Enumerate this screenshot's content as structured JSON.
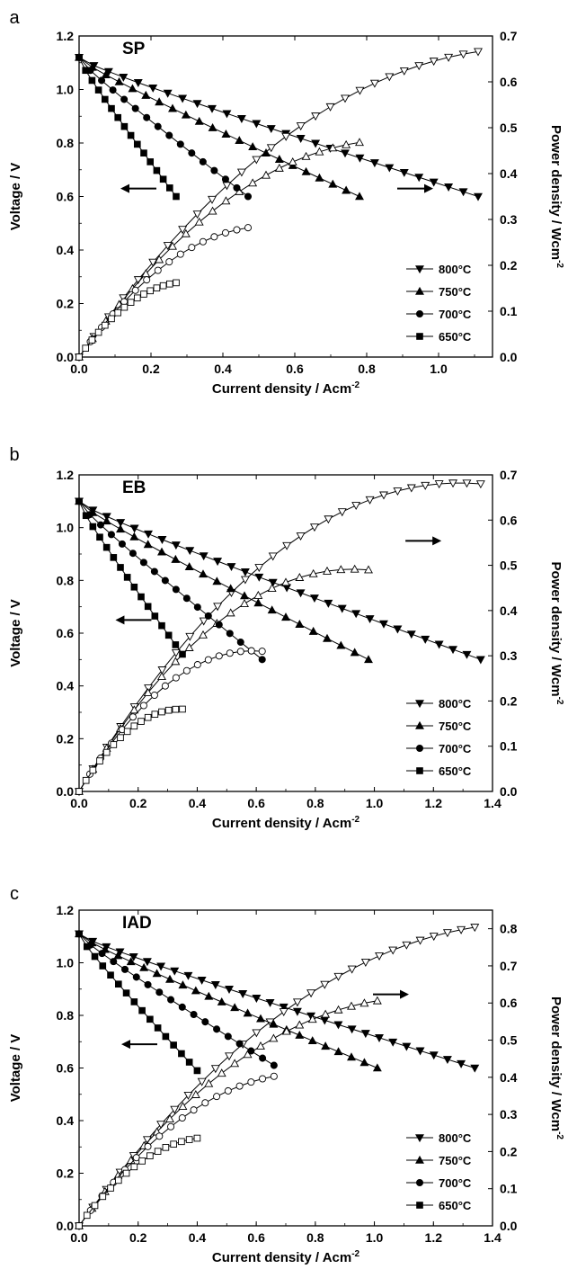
{
  "chart_data": [
    {
      "type": "line",
      "panel_letter": "a",
      "title": "SP",
      "xlabel": "Current density / Acm",
      "xlabel_sup": "-2",
      "ylabel": "Voltage / V",
      "y2label": "Power density / Wcm",
      "y2label_sup": "-2",
      "xlim": [
        0,
        1.15
      ],
      "xticks": [
        "0.0",
        "0.2",
        "0.4",
        "0.6",
        "0.8",
        "1.0"
      ],
      "xtick_values": [
        0,
        0.2,
        0.4,
        0.6,
        0.8,
        1.0
      ],
      "ylim": [
        0,
        1.2
      ],
      "yticks": [
        "0.0",
        "0.2",
        "0.4",
        "0.6",
        "0.8",
        "1.0",
        "1.2"
      ],
      "yticks_values": [
        0,
        0.2,
        0.4,
        0.6,
        0.8,
        1.0,
        1.2
      ],
      "y2lim": [
        0,
        0.7
      ],
      "y2ticks": [
        "0.0",
        "0.1",
        "0.2",
        "0.3",
        "0.4",
        "0.5",
        "0.6",
        "0.7"
      ],
      "y2ticks_values": [
        0,
        0.1,
        0.2,
        0.3,
        0.4,
        0.5,
        0.6,
        0.7
      ],
      "legend_position": "bottom-right",
      "left_arrow_at": [
        0.17,
        0.63
      ],
      "right_arrow_at": [
        0.93,
        0.63
      ],
      "series": [
        {
          "name": "800°C",
          "marker": "triangle-down",
          "ocv": 1.12,
          "imax": 1.11,
          "vmin": 0.6
        },
        {
          "name": "750°C",
          "marker": "triangle-up",
          "ocv": 1.12,
          "imax": 0.78,
          "vmin": 0.6
        },
        {
          "name": "700°C",
          "marker": "circle",
          "ocv": 1.12,
          "imax": 0.47,
          "vmin": 0.6
        },
        {
          "name": "650°C",
          "marker": "square",
          "ocv": 1.12,
          "imax": 0.27,
          "vmin": 0.6
        }
      ]
    },
    {
      "type": "line",
      "panel_letter": "b",
      "title": "EB",
      "xlabel": "Current density / Acm",
      "xlabel_sup": "-2",
      "ylabel": "Voltage / V",
      "y2label": "Power density / Wcm",
      "y2label_sup": "-2",
      "xlim": [
        0,
        1.4
      ],
      "xticks": [
        "0.0",
        "0.2",
        "0.4",
        "0.6",
        "0.8",
        "1.0",
        "1.2",
        "1.4"
      ],
      "xtick_values": [
        0,
        0.2,
        0.4,
        0.6,
        0.8,
        1.0,
        1.2,
        1.4
      ],
      "ylim": [
        0,
        1.2
      ],
      "yticks": [
        "0.0",
        "0.2",
        "0.4",
        "0.6",
        "0.8",
        "1.0",
        "1.2"
      ],
      "yticks_values": [
        0,
        0.2,
        0.4,
        0.6,
        0.8,
        1.0,
        1.2
      ],
      "y2lim": [
        0,
        0.7
      ],
      "y2ticks": [
        "0.0",
        "0.1",
        "0.2",
        "0.3",
        "0.4",
        "0.5",
        "0.6",
        "0.7"
      ],
      "y2ticks_values": [
        0,
        0.1,
        0.2,
        0.3,
        0.4,
        0.5,
        0.6,
        0.7
      ],
      "legend_position": "bottom-right",
      "left_arrow_at": [
        0.19,
        0.65
      ],
      "right_arrow_at": [
        1.16,
        0.95
      ],
      "series": [
        {
          "name": "800°C",
          "marker": "triangle-down",
          "ocv": 1.1,
          "imax": 1.36,
          "vmin": 0.5
        },
        {
          "name": "750°C",
          "marker": "triangle-up",
          "ocv": 1.1,
          "imax": 0.98,
          "vmin": 0.5
        },
        {
          "name": "700°C",
          "marker": "circle",
          "ocv": 1.1,
          "imax": 0.62,
          "vmin": 0.5
        },
        {
          "name": "650°C",
          "marker": "square",
          "ocv": 1.1,
          "imax": 0.35,
          "vmin": 0.52
        }
      ]
    },
    {
      "type": "line",
      "panel_letter": "c",
      "title": "IAD",
      "xlabel": "Current density / Acm",
      "xlabel_sup": "-2",
      "ylabel": "Voltage / V",
      "y2label": "Power density / Wcm",
      "y2label_sup": "-2",
      "xlim": [
        0,
        1.4
      ],
      "xticks": [
        "0.0",
        "0.2",
        "0.4",
        "0.6",
        "0.8",
        "1.0",
        "1.2",
        "1.4"
      ],
      "xtick_values": [
        0,
        0.2,
        0.4,
        0.6,
        0.8,
        1.0,
        1.2,
        1.4
      ],
      "ylim": [
        0,
        1.2
      ],
      "yticks": [
        "0.0",
        "0.2",
        "0.4",
        "0.6",
        "0.8",
        "1.0",
        "1.2"
      ],
      "yticks_values": [
        0,
        0.2,
        0.4,
        0.6,
        0.8,
        1.0,
        1.2
      ],
      "y2lim": [
        0,
        0.85
      ],
      "y2ticks": [
        "0.0",
        "0.1",
        "0.2",
        "0.3",
        "0.4",
        "0.5",
        "0.6",
        "0.7",
        "0.8"
      ],
      "y2ticks_values": [
        0,
        0.1,
        0.2,
        0.3,
        0.4,
        0.5,
        0.6,
        0.7,
        0.8
      ],
      "legend_position": "bottom-right",
      "left_arrow_at": [
        0.21,
        0.69
      ],
      "right_arrow_at": [
        1.05,
        0.88
      ],
      "series": [
        {
          "name": "800°C",
          "marker": "triangle-down",
          "ocv": 1.11,
          "imax": 1.34,
          "vmin": 0.6
        },
        {
          "name": "750°C",
          "marker": "triangle-up",
          "ocv": 1.11,
          "imax": 1.01,
          "vmin": 0.6
        },
        {
          "name": "700°C",
          "marker": "circle",
          "ocv": 1.11,
          "imax": 0.66,
          "vmin": 0.61
        },
        {
          "name": "650°C",
          "marker": "square",
          "ocv": 1.11,
          "imax": 0.4,
          "vmin": 0.59
        }
      ]
    }
  ]
}
